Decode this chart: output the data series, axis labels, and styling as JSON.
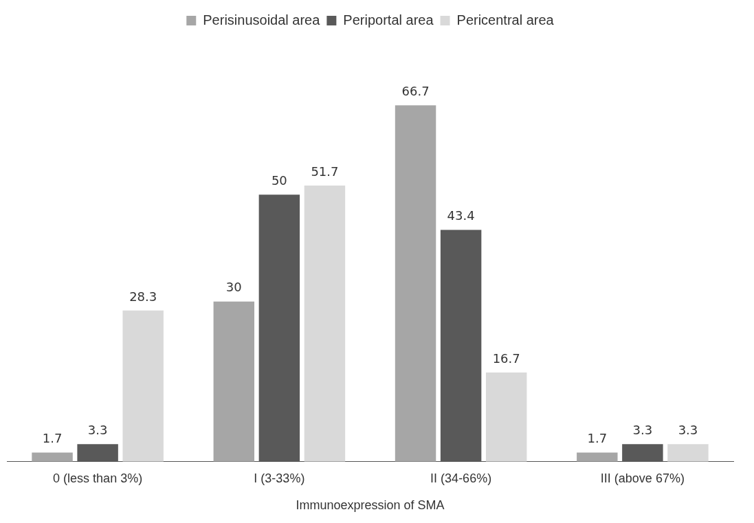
{
  "chart_data": {
    "type": "bar",
    "xlabel": "Immunoexpression of SMA",
    "categories": [
      "0 (less than 3%)",
      "I (3-33%)",
      "II (34-66%)",
      "III (above 67%)"
    ],
    "series": [
      {
        "name": "Perisinusoidal area",
        "color": "#a6a6a6",
        "values": [
          1.7,
          30,
          66.7,
          1.7
        ]
      },
      {
        "name": "Periportal area",
        "color": "#595959",
        "values": [
          3.3,
          50,
          43.4,
          3.3
        ]
      },
      {
        "name": "Pericentral area",
        "color": "#d9d9d9",
        "values": [
          28.3,
          51.7,
          16.7,
          3.3
        ]
      }
    ],
    "data_labels": true,
    "legend": "top",
    "grid": false
  }
}
